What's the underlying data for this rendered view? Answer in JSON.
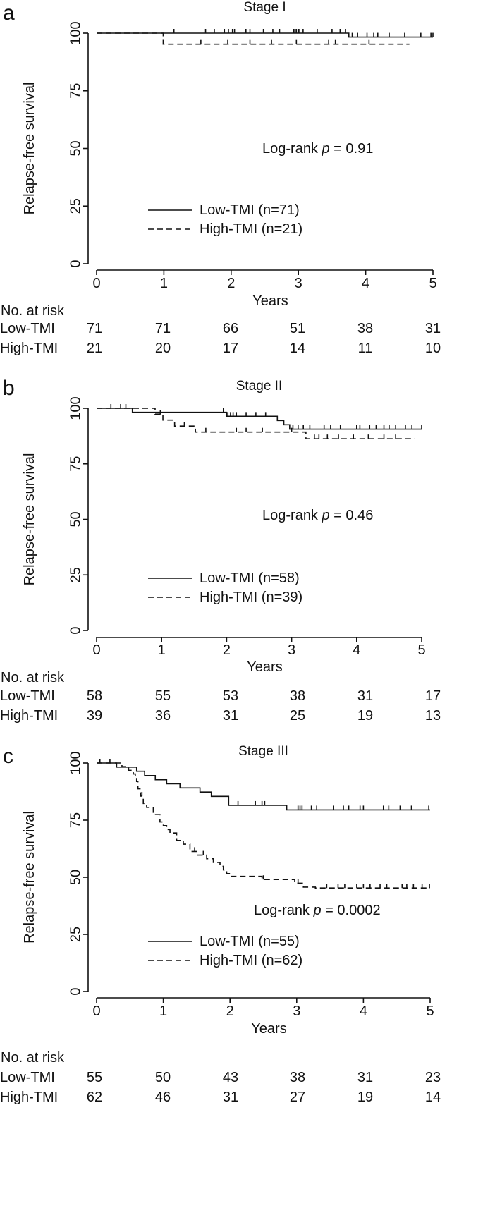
{
  "risk_header": "No. at risk",
  "chart_data": [
    {
      "type": "line",
      "panel": "a",
      "title": "Stage I",
      "xlabel": "Years",
      "ylabel": "Relapse-free survival",
      "xlim": [
        0,
        5
      ],
      "ylim": [
        0,
        100
      ],
      "xticks": [
        0,
        1,
        2,
        3,
        4,
        5
      ],
      "yticks": [
        0,
        25,
        50,
        75,
        100
      ],
      "annotation": {
        "prefix": "Log-rank ",
        "italic": "p",
        "suffix": " = 0.91"
      },
      "legend_position": "bottom-center",
      "series": [
        {
          "name": "Low-TMI (n=71)",
          "style": "solid",
          "steps": [
            [
              0,
              100
            ],
            [
              3.75,
              98.3
            ],
            [
              5,
              98.3
            ]
          ],
          "censored": [
            1.15,
            1.62,
            1.75,
            1.9,
            1.96,
            2.02,
            2.05,
            2.22,
            2.28,
            2.48,
            2.62,
            2.72,
            2.93,
            2.95,
            2.97,
            3.0,
            3.02,
            3.07,
            3.28,
            3.5,
            3.62,
            3.7,
            3.8,
            3.88,
            4.02,
            4.12,
            4.18,
            4.35,
            4.58,
            4.82,
            4.97,
            5.0
          ]
        },
        {
          "name": "High-TMI (n=21)",
          "style": "dashed",
          "steps": [
            [
              0,
              100
            ],
            [
              0.99,
              95.2
            ],
            [
              4.65,
              95.2
            ]
          ],
          "censored": [
            1.55,
            1.95,
            2.28,
            2.6,
            2.97,
            3.45,
            3.55,
            4.05
          ]
        }
      ],
      "risk_table": {
        "times": [
          0,
          1,
          2,
          3,
          4,
          5
        ],
        "rows": [
          {
            "label": "Low-TMI",
            "counts": [
              71,
              71,
              66,
              51,
              38,
              31
            ]
          },
          {
            "label": "High-TMI",
            "counts": [
              21,
              20,
              17,
              14,
              11,
              10
            ]
          }
        ]
      }
    },
    {
      "type": "line",
      "panel": "b",
      "title": "Stage II",
      "xlabel": "Years",
      "ylabel": "Relapse-free survival",
      "xlim": [
        0,
        5
      ],
      "ylim": [
        0,
        100
      ],
      "xticks": [
        0,
        1,
        2,
        3,
        4,
        5
      ],
      "yticks": [
        0,
        25,
        50,
        75,
        100
      ],
      "annotation": {
        "prefix": "Log-rank ",
        "italic": "p",
        "suffix": " = 0.46"
      },
      "legend_position": "bottom-center",
      "series": [
        {
          "name": "Low-TMI (n=58)",
          "style": "solid",
          "steps": [
            [
              0,
              100
            ],
            [
              0.55,
              98.2
            ],
            [
              2.0,
              96.4
            ],
            [
              2.78,
              94.5
            ],
            [
              2.88,
              92.6
            ],
            [
              2.97,
              90.6
            ],
            [
              5,
              90.6
            ]
          ],
          "censored": [
            0.22,
            0.37,
            1.95,
            2.02,
            2.06,
            2.1,
            2.15,
            2.3,
            2.45,
            2.6,
            3.02,
            3.1,
            3.18,
            3.28,
            3.5,
            3.6,
            3.75,
            4.0,
            4.05,
            4.2,
            4.3,
            4.42,
            4.5,
            4.6,
            4.75,
            4.85,
            5.0
          ]
        },
        {
          "name": "High-TMI (n=39)",
          "style": "dashed",
          "steps": [
            [
              0,
              100
            ],
            [
              0.9,
              97.4
            ],
            [
              1.02,
              94.7
            ],
            [
              1.2,
              92.0
            ],
            [
              1.52,
              89.3
            ],
            [
              3.22,
              86.3
            ],
            [
              4.9,
              86.3
            ]
          ],
          "censored": [
            0.45,
            0.98,
            1.35,
            1.68,
            2.15,
            2.3,
            2.55,
            3.0,
            3.35,
            3.42,
            3.55,
            3.72,
            3.95,
            4.18,
            4.42,
            4.6
          ]
        }
      ],
      "risk_table": {
        "times": [
          0,
          1,
          2,
          3,
          4,
          5
        ],
        "rows": [
          {
            "label": "Low-TMI",
            "counts": [
              58,
              55,
              53,
              38,
              31,
              17
            ]
          },
          {
            "label": "High-TMI",
            "counts": [
              39,
              36,
              31,
              25,
              19,
              13
            ]
          }
        ]
      }
    },
    {
      "type": "line",
      "panel": "c",
      "title": "Stage III",
      "xlabel": "Years",
      "ylabel": "Relapse-free survival",
      "xlim": [
        0,
        5
      ],
      "ylim": [
        0,
        100
      ],
      "xticks": [
        0,
        1,
        2,
        3,
        4,
        5
      ],
      "yticks": [
        0,
        25,
        50,
        75,
        100
      ],
      "annotation": {
        "prefix": "Log-rank ",
        "italic": "p",
        "suffix": " = 0.0002"
      },
      "legend_position": "bottom-center",
      "series": [
        {
          "name": "Low-TMI (n=55)",
          "style": "solid",
          "steps": [
            [
              0,
              100
            ],
            [
              0.3,
              98.2
            ],
            [
              0.6,
              96.4
            ],
            [
              0.72,
              94.5
            ],
            [
              0.88,
              92.7
            ],
            [
              1.05,
              90.9
            ],
            [
              1.25,
              89.1
            ],
            [
              1.55,
              87.3
            ],
            [
              1.72,
              85.4
            ],
            [
              1.98,
              81.5
            ],
            [
              2.85,
              79.5
            ],
            [
              5,
              79.5
            ]
          ],
          "censored": [
            0.05,
            2.12,
            2.38,
            2.48,
            2.52,
            3.02,
            3.05,
            3.08,
            3.22,
            3.3,
            3.55,
            3.7,
            3.78,
            3.95,
            4.0,
            4.3,
            4.38,
            4.55,
            4.72,
            4.98
          ]
        },
        {
          "name": "High-TMI (n=62)",
          "style": "dashed",
          "steps": [
            [
              0,
              100
            ],
            [
              0.38,
              98.4
            ],
            [
              0.48,
              96.8
            ],
            [
              0.55,
              95.2
            ],
            [
              0.58,
              93.5
            ],
            [
              0.6,
              91.9
            ],
            [
              0.62,
              88.7
            ],
            [
              0.66,
              85.5
            ],
            [
              0.7,
              82.3
            ],
            [
              0.75,
              80.6
            ],
            [
              0.85,
              77.4
            ],
            [
              0.95,
              74.2
            ],
            [
              1.0,
              72.6
            ],
            [
              1.05,
              70.9
            ],
            [
              1.1,
              69.4
            ],
            [
              1.2,
              66.1
            ],
            [
              1.3,
              64.5
            ],
            [
              1.4,
              61.3
            ],
            [
              1.5,
              59.7
            ],
            [
              1.65,
              58.1
            ],
            [
              1.75,
              56.5
            ],
            [
              1.85,
              54.8
            ],
            [
              1.9,
              53.2
            ],
            [
              1.95,
              51.6
            ],
            [
              2.0,
              50.4
            ],
            [
              2.48,
              49.0
            ],
            [
              2.97,
              47.4
            ],
            [
              3.1,
              45.7
            ],
            [
              3.28,
              45.3
            ],
            [
              5,
              45.3
            ]
          ],
          "censored": [
            0.2,
            0.68,
            1.47,
            1.6,
            2.5,
            3.02,
            3.45,
            3.62,
            3.72,
            3.9,
            4.0,
            4.1,
            4.25,
            4.35,
            4.58,
            4.65,
            4.75,
            4.88,
            4.99
          ]
        }
      ],
      "risk_table": {
        "times": [
          0,
          1,
          2,
          3,
          4,
          5
        ],
        "rows": [
          {
            "label": "Low-TMI",
            "counts": [
              55,
              50,
              43,
              38,
              31,
              23
            ]
          },
          {
            "label": "High-TMI",
            "counts": [
              62,
              46,
              31,
              27,
              19,
              14
            ]
          }
        ]
      }
    }
  ]
}
